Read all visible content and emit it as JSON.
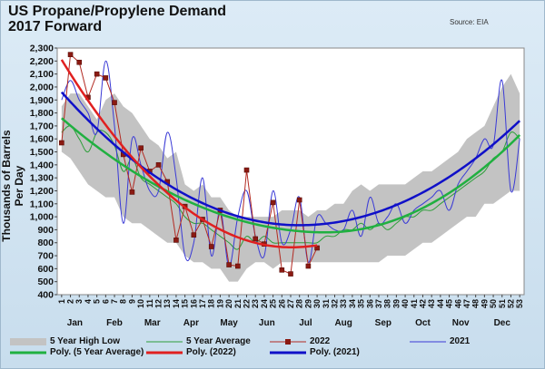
{
  "header": {
    "title_line1": "US Propane/Propylene Demand",
    "title_line2": "2017 Forward",
    "source": "Source: EIA"
  },
  "colors": {
    "band": "#c3c3c3",
    "avg": "#2e9e3a",
    "y2022": "#b22a22",
    "y2022_marker": "#8b1a12",
    "y2021": "#3a3ad6",
    "poly_avg": "#20b040",
    "poly_2022": "#e02020",
    "poly_2021": "#1010c8",
    "plot_bg": "#ffffff"
  },
  "chart_data": {
    "type": "line",
    "ylabel": "Thousands of Barrels Per Day",
    "ylim": [
      400,
      2300
    ],
    "y_ticks": [
      "400",
      "500",
      "600",
      "700",
      "800",
      "900",
      "1,000",
      "1,100",
      "1,200",
      "1,300",
      "1,400",
      "1,500",
      "1,600",
      "1,700",
      "1,800",
      "1,900",
      "2,000",
      "2,100",
      "2,200",
      "2,300"
    ],
    "week_labels": [
      "1",
      "2",
      "3",
      "4",
      "5",
      "6",
      "7",
      "8",
      "9",
      "10",
      "11",
      "12",
      "13",
      "14",
      "15",
      "16",
      "17",
      "18",
      "19",
      "20",
      "21",
      "22",
      "23",
      "24",
      "25",
      "26",
      "27",
      "28",
      "29",
      "30",
      "31",
      "32",
      "33",
      "34",
      "35",
      "36",
      "37",
      "38",
      "39",
      "40",
      "41",
      "42",
      "43",
      "44",
      "45",
      "46",
      "47",
      "48",
      "49",
      "50",
      "51",
      "52",
      "53"
    ],
    "months": [
      {
        "label": "Jan",
        "week": 2.5
      },
      {
        "label": "Feb",
        "week": 7
      },
      {
        "label": "Mar",
        "week": 11.3
      },
      {
        "label": "Apr",
        "week": 15.7
      },
      {
        "label": "May",
        "week": 20
      },
      {
        "label": "Jun",
        "week": 24.3
      },
      {
        "label": "Jul",
        "week": 28.7
      },
      {
        "label": "Aug",
        "week": 33
      },
      {
        "label": "Sep",
        "week": 37.5
      },
      {
        "label": "Oct",
        "week": 42
      },
      {
        "label": "Nov",
        "week": 46.3
      },
      {
        "label": "Dec",
        "week": 51
      }
    ],
    "legend": {
      "band": "5 Year High Low",
      "avg": "5 Year Average",
      "y2022": "2022",
      "y2021": "2021",
      "poly_avg": "Poly. (5 Year Average)",
      "poly_2022": "Poly. (2022)",
      "poly_2021": "Poly. (2021)"
    },
    "band_high": [
      1850,
      1950,
      1950,
      1850,
      1750,
      1900,
      1950,
      1850,
      1800,
      1700,
      1600,
      1550,
      1450,
      1500,
      1250,
      1200,
      1250,
      1150,
      1150,
      1050,
      1000,
      1000,
      1000,
      1000,
      1000,
      1050,
      1050,
      1050,
      1000,
      1050,
      1050,
      1100,
      1100,
      1200,
      1250,
      1200,
      1250,
      1250,
      1250,
      1250,
      1300,
      1350,
      1350,
      1400,
      1450,
      1500,
      1600,
      1650,
      1700,
      1850,
      2000,
      2100,
      1950
    ],
    "band_low": [
      1500,
      1450,
      1350,
      1250,
      1200,
      1150,
      1150,
      1000,
      950,
      950,
      900,
      850,
      800,
      800,
      700,
      650,
      650,
      600,
      600,
      500,
      500,
      600,
      650,
      650,
      600,
      650,
      650,
      650,
      650,
      650,
      650,
      650,
      650,
      650,
      650,
      650,
      650,
      700,
      700,
      700,
      750,
      800,
      800,
      850,
      900,
      950,
      1000,
      1000,
      1100,
      1100,
      1150,
      1200,
      1200
    ],
    "series": [
      {
        "name": "5 Year Average",
        "values": [
          1650,
          1700,
          1600,
          1500,
          1650,
          1650,
          1550,
          1350,
          1450,
          1300,
          1250,
          1200,
          1150,
          1100,
          1000,
          950,
          950,
          900,
          850,
          800,
          750,
          850,
          800,
          850,
          800,
          800,
          800,
          800,
          800,
          800,
          850,
          850,
          900,
          900,
          950,
          900,
          950,
          900,
          950,
          1000,
          1000,
          1050,
          1050,
          1100,
          1150,
          1200,
          1250,
          1300,
          1350,
          1450,
          1500,
          1650,
          1600
        ]
      },
      {
        "name": "2022",
        "values": [
          1570,
          2250,
          2190,
          1920,
          2100,
          2070,
          1880,
          1480,
          1190,
          1530,
          1350,
          1400,
          1270,
          820,
          1080,
          860,
          980,
          770,
          1050,
          630,
          620,
          1360,
          830,
          790,
          1110,
          590,
          560,
          1130,
          620,
          760
        ]
      },
      {
        "name": "2021",
        "values": [
          1900,
          2050,
          1900,
          1800,
          1650,
          2200,
          1700,
          950,
          1600,
          1400,
          1200,
          1200,
          1650,
          1300,
          700,
          800,
          1300,
          700,
          1050,
          620,
          1000,
          1200,
          850,
          700,
          1200,
          800,
          900,
          1150,
          650,
          1000,
          950,
          900,
          900,
          1050,
          850,
          1150,
          950,
          1000,
          1100,
          950,
          1050,
          1100,
          1150,
          1200,
          1050,
          1250,
          1350,
          1450,
          1600,
          1550,
          2050,
          1200,
          1600
        ]
      },
      {
        "name": "Poly. (5 Year Average)",
        "endpoints": [
          1760,
          1630
        ],
        "min": [
          31,
          880
        ]
      },
      {
        "name": "Poly. (2022)",
        "endpoints": [
          2210,
          780
        ],
        "min": [
          27,
          765
        ]
      },
      {
        "name": "Poly. (2021)",
        "endpoints": [
          1960,
          1740
        ],
        "min": [
          28,
          935
        ]
      }
    ]
  }
}
